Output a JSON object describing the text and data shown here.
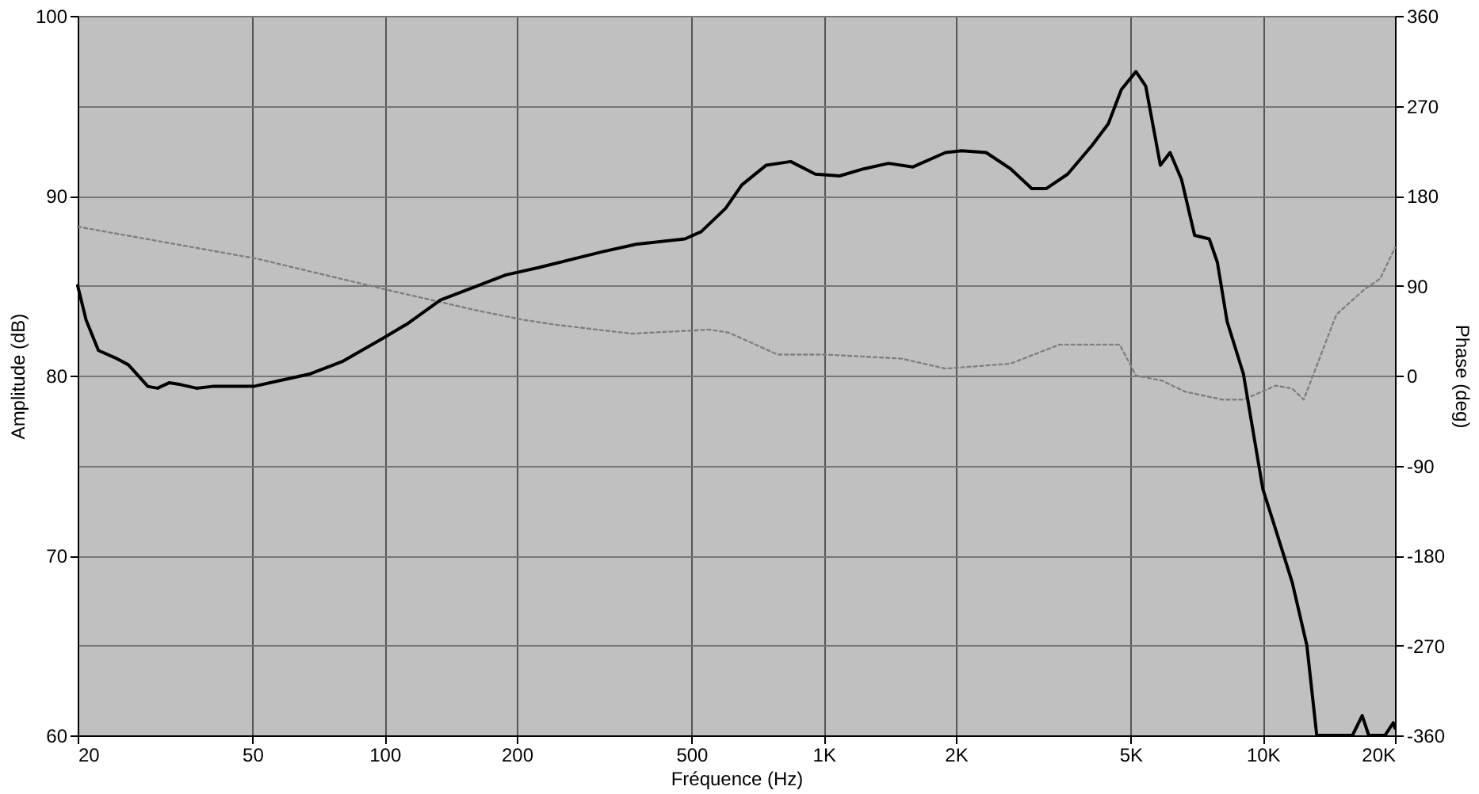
{
  "chart_data": {
    "type": "line",
    "xlabel": "Fréquence (Hz)",
    "ylabel": "Amplitude (dB)",
    "y2label": "Phase (deg)",
    "log": "x",
    "grid": true,
    "marker": "none",
    "xlim": [
      20,
      20000
    ],
    "xticks": [
      20,
      50,
      100,
      200,
      500,
      {
        "value": 1000,
        "label": "1K"
      },
      {
        "value": 2000,
        "label": "2K"
      },
      {
        "value": 5000,
        "label": "5K"
      },
      {
        "value": 10000,
        "label": "10K"
      },
      {
        "value": 20000,
        "label": "20K"
      }
    ],
    "ylim": [
      60,
      100
    ],
    "yticks": [
      60,
      70,
      80,
      90,
      100
    ],
    "y2lim": [
      -360,
      360
    ],
    "y2ticks": [
      -360,
      -270,
      -180,
      -90,
      0,
      90,
      180,
      270,
      360
    ],
    "series": [
      {
        "color": "#000000",
        "line_style": "solid",
        "x": [
          20,
          20.9,
          22.3,
          24.3,
          26.1,
          28.9,
          30.4,
          32.3,
          34.3,
          37.3,
          40.6,
          50.3,
          57.2,
          67.8,
          80.4,
          99.6,
          113,
          134,
          159,
          189,
          224,
          315,
          374,
          483,
          526,
          598,
          651,
          740,
          841,
          957,
          1087,
          1236,
          1405,
          1597,
          1894,
          2062,
          2344,
          2664,
          2978,
          3216,
          3594,
          4084,
          4448,
          4763,
          5142,
          5412,
          5844,
          6150,
          6530,
          6994,
          7551,
          7880,
          8294,
          9032,
          10000,
          10710,
          11670,
          12600,
          13270,
          16000,
          16840,
          17430,
          18980,
          19820,
          20000
        ],
        "values": [
          85,
          83.1,
          81.4,
          81.0,
          80.6,
          79.4,
          79.3,
          79.6,
          79.5,
          79.3,
          79.4,
          79.4,
          79.7,
          80.1,
          80.8,
          82.1,
          82.9,
          84.2,
          84.9,
          85.6,
          86.0,
          86.9,
          87.3,
          87.6,
          88.0,
          89.3,
          90.6,
          91.7,
          91.9,
          91.2,
          91.1,
          91.5,
          91.8,
          91.6,
          92.4,
          92.5,
          92.4,
          91.5,
          90.4,
          90.4,
          91.2,
          92.8,
          94.0,
          95.9,
          96.9,
          96.1,
          91.7,
          92.4,
          90.9,
          87.8,
          87.6,
          86.3,
          83.0,
          80.1,
          73.7,
          71.4,
          68.5,
          65.0,
          60,
          60,
          61.1,
          60,
          60,
          60.7,
          60.4
        ]
      },
      {
        "color": "#808080",
        "line_style": "dotted",
        "axis": "y2",
        "x": [
          20,
          51.2,
          101,
          163,
          206,
          244,
          365,
          496,
          549,
          608,
          786,
          1015,
          1504,
          1894,
          2664,
          3443,
          4721,
          5142,
          5894,
          6643,
          8086,
          9032,
          10710,
          11670,
          12390,
          13490,
          14700,
          17000,
          18510,
          20000
        ],
        "values": [
          149,
          117,
          86,
          65,
          56,
          51,
          42,
          45,
          46,
          43,
          21,
          21,
          17,
          7,
          12,
          31,
          31,
          0,
          -5,
          -16,
          -24,
          -24,
          -10,
          -13,
          -24,
          18,
          61,
          86,
          97,
          128
        ]
      }
    ]
  }
}
